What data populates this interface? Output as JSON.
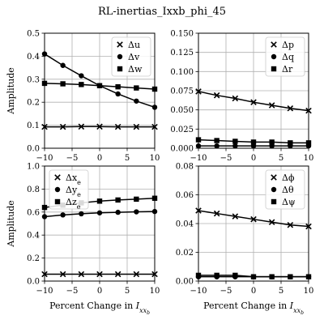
{
  "figure": {
    "title": "RL-inertias_Ixxb_phi_45"
  },
  "chart_data": [
    {
      "type": "line",
      "ylabel": "Amplitude",
      "xlabel": "",
      "xlim": [
        -10,
        10
      ],
      "ylim": [
        0,
        0.5
      ],
      "xticks": [
        "−10",
        "−5",
        "0",
        "5",
        "10"
      ],
      "yticks": [
        "0.0",
        "0.1",
        "0.2",
        "0.3",
        "0.4",
        "0.5"
      ],
      "ytick_values": [
        0,
        0.1,
        0.2,
        0.3,
        0.4,
        0.5
      ],
      "grid": true,
      "legend_position": "top-right",
      "x": [
        -10,
        -6.67,
        -3.33,
        0,
        3.33,
        6.67,
        10
      ],
      "series": [
        {
          "name": "Δu",
          "marker": "x",
          "values": [
            0.093,
            0.093,
            0.094,
            0.094,
            0.093,
            0.093,
            0.093
          ]
        },
        {
          "name": "Δv",
          "marker": "circle",
          "values": [
            0.41,
            0.36,
            0.315,
            0.272,
            0.236,
            0.205,
            0.178
          ]
        },
        {
          "name": "Δw",
          "marker": "square",
          "values": [
            0.282,
            0.28,
            0.277,
            0.272,
            0.267,
            0.262,
            0.257
          ]
        }
      ]
    },
    {
      "type": "line",
      "ylabel": "",
      "xlabel": "",
      "xlim": [
        -10,
        10
      ],
      "ylim": [
        0,
        0.15
      ],
      "xticks": [
        "−10",
        "−5",
        "0",
        "5",
        "10"
      ],
      "yticks": [
        "0.000",
        "0.025",
        "0.050",
        "0.075",
        "0.100",
        "0.125",
        "0.150"
      ],
      "ytick_values": [
        0,
        0.025,
        0.05,
        0.075,
        0.1,
        0.125,
        0.15
      ],
      "grid": true,
      "legend_position": "top-right",
      "x": [
        -10,
        -6.67,
        -3.33,
        0,
        3.33,
        6.67,
        10
      ],
      "series": [
        {
          "name": "Δp",
          "marker": "x",
          "values": [
            0.074,
            0.069,
            0.065,
            0.06,
            0.056,
            0.052,
            0.049
          ]
        },
        {
          "name": "Δq",
          "marker": "circle",
          "values": [
            0.003,
            0.003,
            0.003,
            0.003,
            0.003,
            0.003,
            0.003
          ]
        },
        {
          "name": "Δr",
          "marker": "square",
          "values": [
            0.011,
            0.01,
            0.009,
            0.008,
            0.008,
            0.007,
            0.007
          ]
        }
      ]
    },
    {
      "type": "line",
      "ylabel": "Amplitude",
      "xlabel": "Percent Change in I_xx_b",
      "xlim": [
        -10,
        10
      ],
      "ylim": [
        0,
        1.0
      ],
      "xticks": [
        "−10",
        "−5",
        "0",
        "5",
        "10"
      ],
      "yticks": [
        "0.0",
        "0.2",
        "0.4",
        "0.6",
        "0.8",
        "1.0"
      ],
      "ytick_values": [
        0,
        0.2,
        0.4,
        0.6,
        0.8,
        1.0
      ],
      "grid": true,
      "legend_position": "top-left",
      "x": [
        -10,
        -6.67,
        -3.33,
        0,
        3.33,
        6.67,
        10
      ],
      "series": [
        {
          "name": "Δx_e",
          "marker": "x",
          "values": [
            0.06,
            0.06,
            0.06,
            0.06,
            0.06,
            0.06,
            0.06
          ]
        },
        {
          "name": "Δy_e",
          "marker": "circle",
          "values": [
            0.56,
            0.575,
            0.585,
            0.593,
            0.598,
            0.602,
            0.605
          ]
        },
        {
          "name": "Δz_e",
          "marker": "square",
          "values": [
            0.64,
            0.66,
            0.68,
            0.695,
            0.705,
            0.712,
            0.72
          ]
        }
      ]
    },
    {
      "type": "line",
      "ylabel": "",
      "xlabel": "Percent Change in I_xx_b",
      "xlim": [
        -10,
        10
      ],
      "ylim": [
        0,
        0.08
      ],
      "xticks": [
        "−10",
        "−5",
        "0",
        "5",
        "10"
      ],
      "yticks": [
        "0.00",
        "0.02",
        "0.04",
        "0.06",
        "0.08"
      ],
      "ytick_values": [
        0,
        0.02,
        0.04,
        0.06,
        0.08
      ],
      "grid": true,
      "legend_position": "top-right",
      "x": [
        -10,
        -6.67,
        -3.33,
        0,
        3.33,
        6.67,
        10
      ],
      "series": [
        {
          "name": "Δϕ",
          "marker": "x",
          "values": [
            0.049,
            0.047,
            0.045,
            0.043,
            0.041,
            0.039,
            0.038
          ]
        },
        {
          "name": "Δθ",
          "marker": "circle",
          "values": [
            0.003,
            0.003,
            0.003,
            0.003,
            0.003,
            0.003,
            0.003
          ]
        },
        {
          "name": "Δψ",
          "marker": "square",
          "values": [
            0.004,
            0.004,
            0.004,
            0.003,
            0.003,
            0.003,
            0.003
          ]
        }
      ]
    }
  ]
}
